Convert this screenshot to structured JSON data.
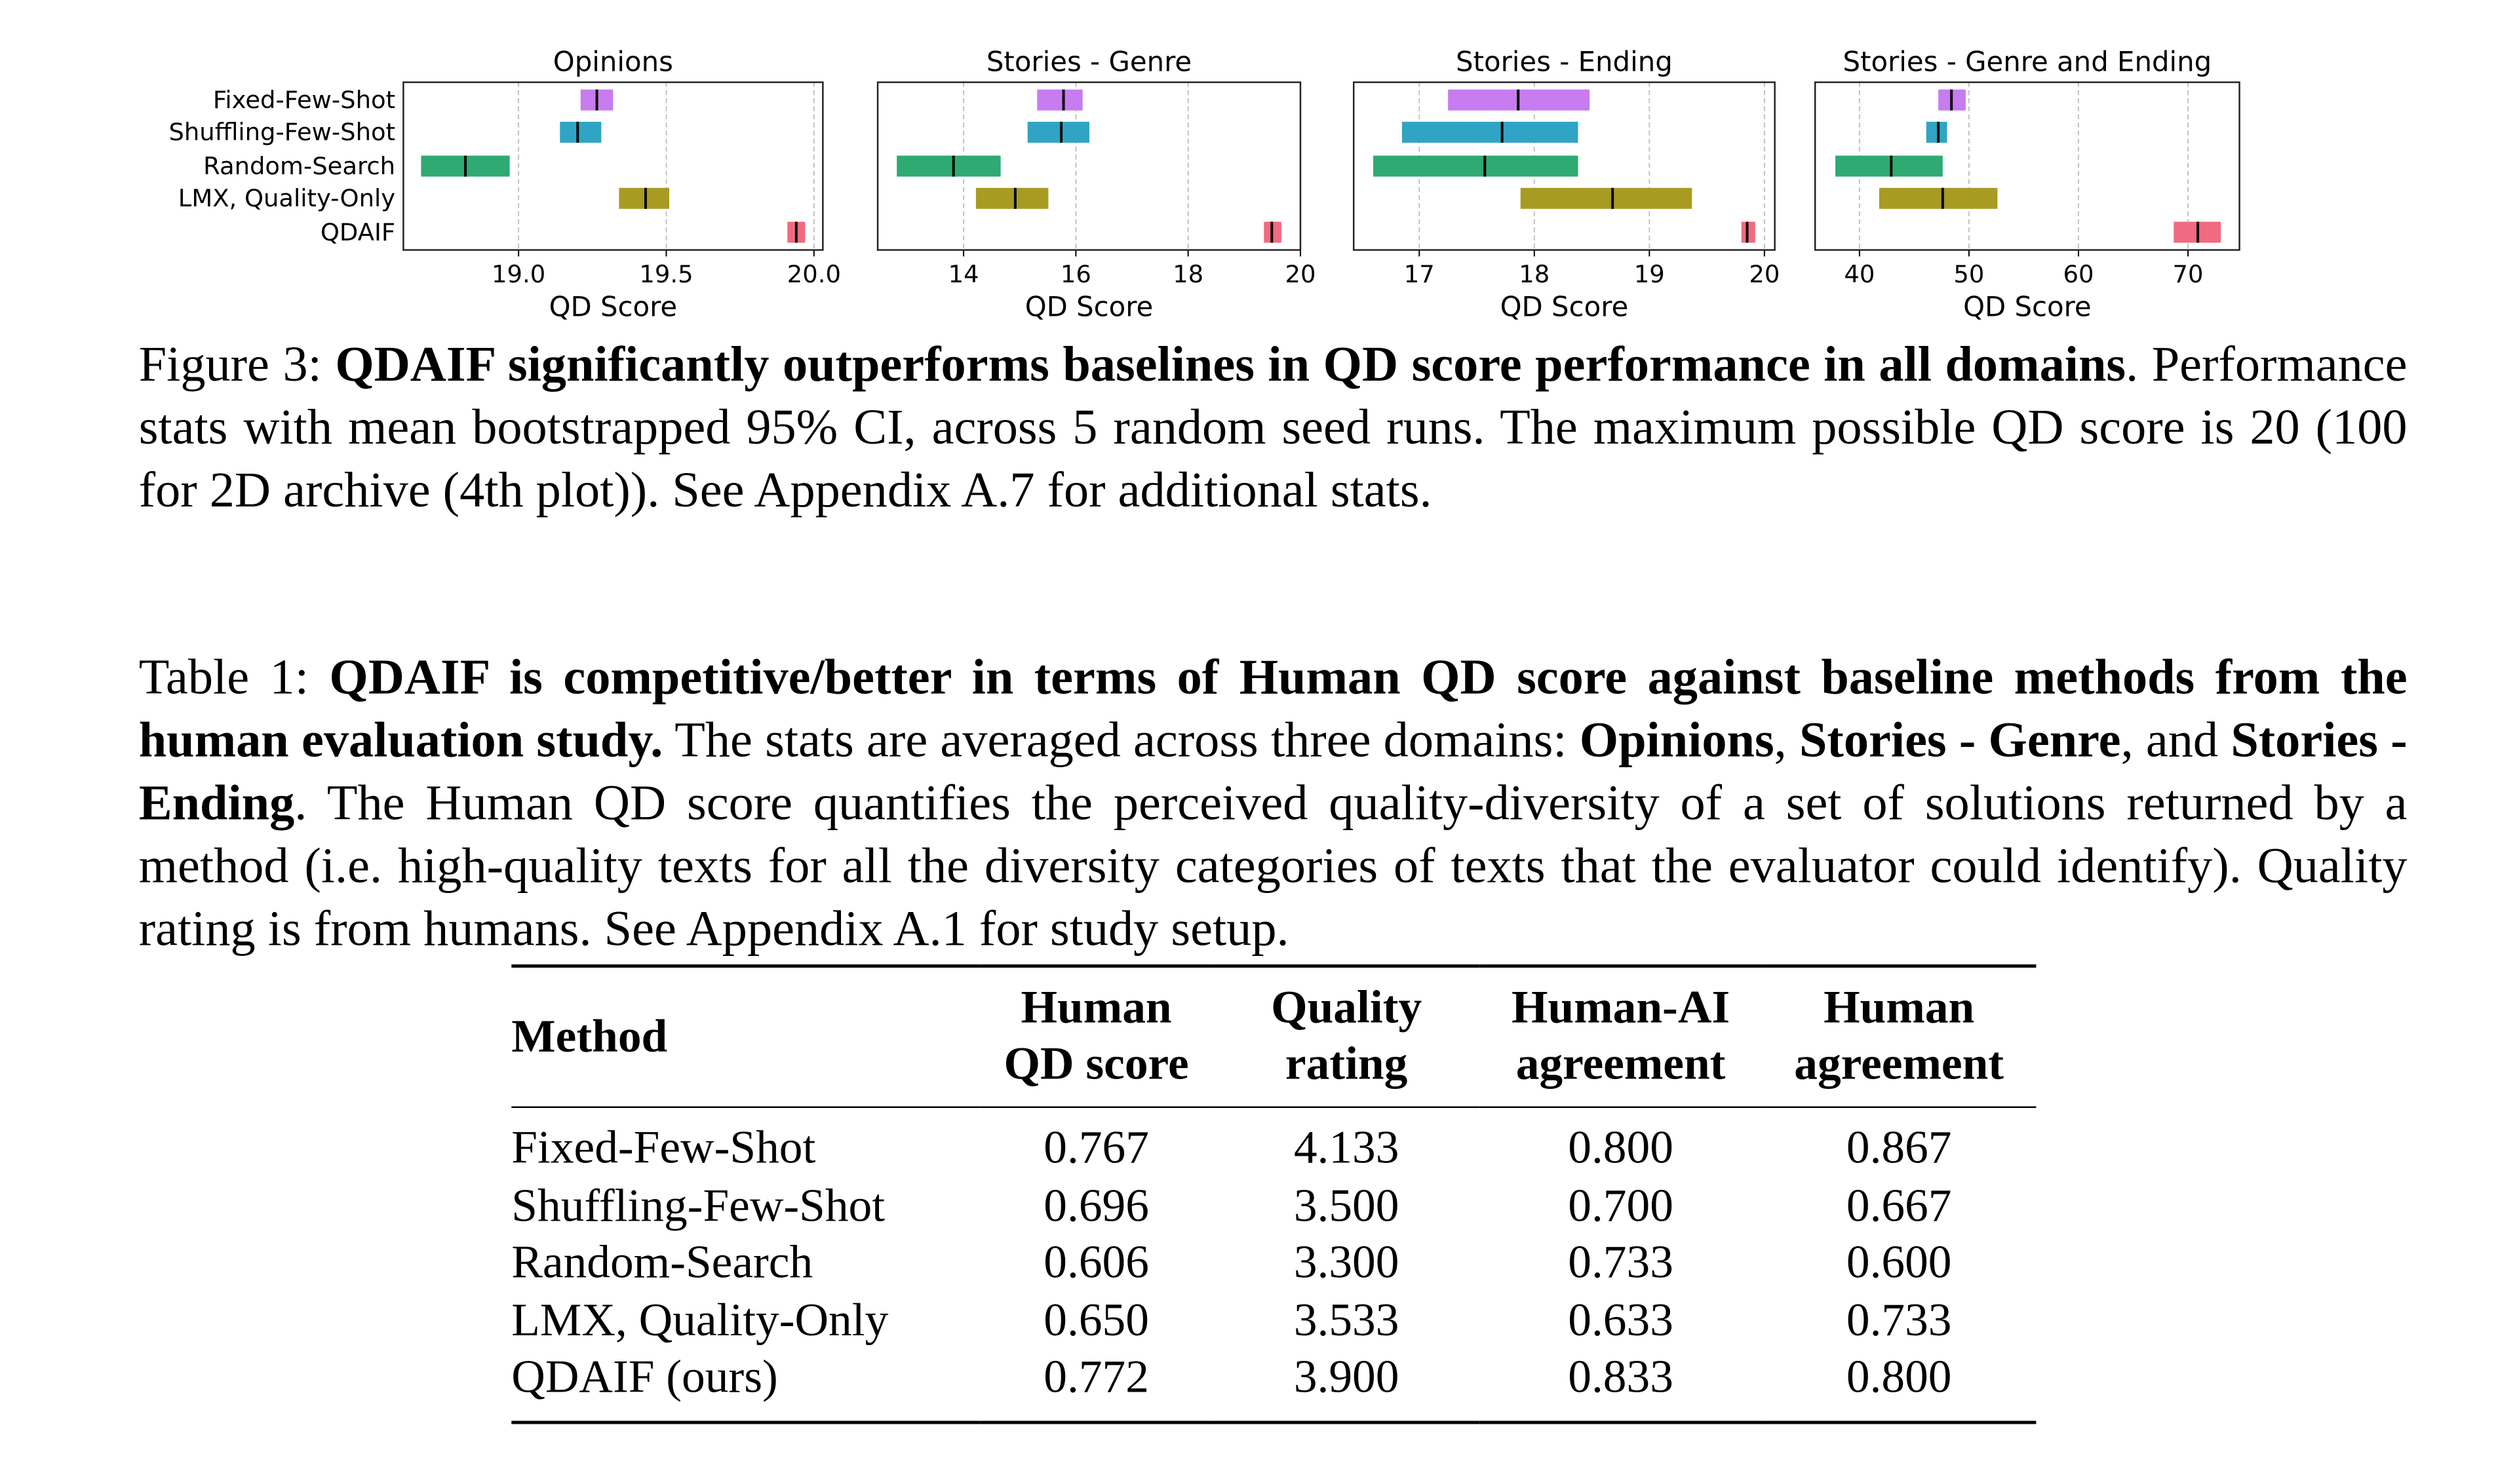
{
  "figure": {
    "caption_label": "Figure 3:",
    "caption_bold": "QDAIF significantly outperforms baselines in QD score performance in all domains",
    "caption_rest": ". Performance stats with mean bootstrapped 95% CI, across 5 random seed runs.  The maximum possible QD score is 20 (100 for 2D archive (4th plot)). See Appendix A.7 for additional stats."
  },
  "chart_data": [
    {
      "type": "interval",
      "title": "Opinions",
      "xlabel": "QD Score",
      "xlim": [
        18.61,
        20.03
      ],
      "xticks": [
        19.0,
        19.5,
        20.0
      ],
      "xtick_labels": [
        "19.0",
        "19.5",
        "20.0"
      ],
      "grid": true,
      "categories": [
        "Fixed-Few-Shot",
        "Shuffling-Few-Shot",
        "Random-Search",
        "LMX, Quality-Only",
        "QDAIF"
      ],
      "mean": [
        19.265,
        19.2,
        18.82,
        19.43,
        19.94
      ],
      "ci_low": [
        19.21,
        19.14,
        18.67,
        19.34,
        19.91
      ],
      "ci_high": [
        19.32,
        19.28,
        18.97,
        19.51,
        19.97
      ]
    },
    {
      "type": "interval",
      "title": "Stories - Genre",
      "xlabel": "QD Score",
      "xlim": [
        12.47,
        20.0
      ],
      "xticks": [
        14,
        16,
        18,
        20
      ],
      "xtick_labels": [
        "14",
        "16",
        "18",
        "20"
      ],
      "grid": true,
      "mean": [
        15.78,
        15.74,
        13.82,
        14.92,
        19.49
      ],
      "ci_low": [
        15.31,
        15.14,
        12.81,
        14.22,
        19.35
      ],
      "ci_high": [
        16.12,
        16.24,
        14.66,
        15.51,
        19.66
      ]
    },
    {
      "type": "interval",
      "title": "Stories - Ending",
      "xlabel": "QD Score",
      "xlim": [
        16.43,
        20.09
      ],
      "xticks": [
        17,
        18,
        19,
        20
      ],
      "xtick_labels": [
        "17",
        "18",
        "19",
        "20"
      ],
      "grid": true,
      "mean": [
        17.86,
        17.72,
        17.57,
        18.68,
        19.85
      ],
      "ci_low": [
        17.25,
        16.85,
        16.6,
        17.88,
        19.8
      ],
      "ci_high": [
        18.48,
        18.38,
        18.38,
        19.37,
        19.92
      ]
    },
    {
      "type": "interval",
      "title": "Stories - Genre and Ending",
      "xlabel": "QD Score",
      "xlim": [
        35.95,
        74.7
      ],
      "xticks": [
        40,
        50,
        60,
        70
      ],
      "xtick_labels": [
        "40",
        "50",
        "60",
        "70"
      ],
      "grid": true,
      "mean": [
        48.4,
        47.2,
        42.9,
        47.6,
        70.9
      ],
      "ci_low": [
        47.2,
        46.1,
        37.8,
        41.8,
        68.7
      ],
      "ci_high": [
        49.7,
        48.0,
        47.6,
        52.6,
        73.0
      ]
    }
  ],
  "colors": [
    "#c77cf0",
    "#2fa4c4",
    "#2eaa72",
    "#a89b22",
    "#f06a80"
  ],
  "table": {
    "caption_label": "Table 1:",
    "caption_bold1": "QDAIF is competitive/better in terms of Human QD score against baseline methods from the human evaluation study.",
    "caption_t1": " The stats are averaged across three domains: ",
    "caption_b2": "Opinions",
    "caption_t2": ", ",
    "caption_b3": "Stories - Genre",
    "caption_t3": ", and ",
    "caption_b4": "Stories - Ending",
    "caption_t4": ". The Human QD score quantifies the perceived quality-diversity of a set of solutions returned by a method (i.e. high-quality texts for all the diversity categories of texts that the evaluator could identify). Quality rating is from humans. See Appendix A.1 for study setup.",
    "headers": [
      [
        "Method",
        ""
      ],
      [
        "Human",
        "QD score"
      ],
      [
        "Quality",
        "rating"
      ],
      [
        "Human-AI",
        "agreement"
      ],
      [
        "Human",
        "agreement"
      ]
    ],
    "rows": [
      [
        "Fixed-Few-Shot",
        "0.767",
        "4.133",
        "0.800",
        "0.867"
      ],
      [
        "Shuffling-Few-Shot",
        "0.696",
        "3.500",
        "0.700",
        "0.667"
      ],
      [
        "Random-Search",
        "0.606",
        "3.300",
        "0.733",
        "0.600"
      ],
      [
        "LMX, Quality-Only",
        "0.650",
        "3.533",
        "0.633",
        "0.733"
      ],
      [
        "QDAIF (ours)",
        "0.772",
        "3.900",
        "0.833",
        "0.800"
      ]
    ]
  }
}
